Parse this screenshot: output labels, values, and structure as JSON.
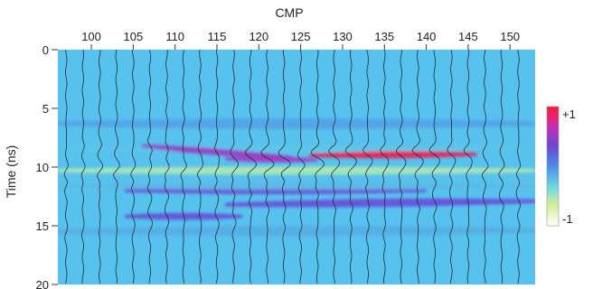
{
  "chart_data": {
    "type": "heatmap",
    "title": "",
    "xlabel": "CMP",
    "ylabel": "Time (ns)",
    "x_axis_position": "top",
    "x_ticks": [
      100,
      105,
      110,
      115,
      120,
      125,
      130,
      135,
      140,
      145,
      150
    ],
    "y_ticks": [
      0,
      5,
      10,
      15,
      20
    ],
    "xlim": [
      96,
      153
    ],
    "ylim": [
      0,
      20
    ],
    "y_inverted": true,
    "grid": false,
    "colorbar": {
      "placement": "right",
      "max_label": "+1",
      "min_label": "-1",
      "range": [
        -1,
        1
      ],
      "colors": [
        "#ffffff",
        "#d6ee98",
        "#66d9e6",
        "#4a8ce8",
        "#6a48d8",
        "#c82cb4",
        "#ff1a2e"
      ]
    },
    "background_color": "#56c2ee",
    "trace_color": "#2b2b2b",
    "wiggle_traces": {
      "cmp_start": 97,
      "cmp_end": 152,
      "cmp_step": 2
    },
    "reflection_bands": [
      {
        "cmp_from": 96,
        "cmp_to": 153,
        "t_start": 8.5,
        "t_end": 8.3,
        "amplitude": -0.25,
        "thickness": 0.6
      },
      {
        "cmp_from": 106,
        "cmp_to": 124,
        "t_start": 8.2,
        "t_end": 9.2,
        "amplitude": 0.5,
        "thickness": 0.55
      },
      {
        "cmp_from": 116,
        "cmp_to": 127,
        "t_start": 9.3,
        "t_end": 9.4,
        "amplitude": 0.55,
        "thickness": 0.5
      },
      {
        "cmp_from": 126,
        "cmp_to": 146,
        "t_start": 9.0,
        "t_end": 8.9,
        "amplitude": 0.9,
        "thickness": 0.6
      },
      {
        "cmp_from": 96,
        "cmp_to": 153,
        "t_start": 10.3,
        "t_end": 10.3,
        "amplitude": -0.55,
        "thickness": 0.7
      },
      {
        "cmp_from": 104,
        "cmp_to": 140,
        "t_start": 12.0,
        "t_end": 12.0,
        "amplitude": 0.35,
        "thickness": 0.6
      },
      {
        "cmp_from": 116,
        "cmp_to": 153,
        "t_start": 13.2,
        "t_end": 12.9,
        "amplitude": 0.3,
        "thickness": 0.7
      },
      {
        "cmp_from": 104,
        "cmp_to": 118,
        "t_start": 14.2,
        "t_end": 14.2,
        "amplitude": 0.3,
        "thickness": 0.6
      },
      {
        "cmp_from": 96,
        "cmp_to": 153,
        "t_start": 11.6,
        "t_end": 11.6,
        "amplitude": -0.2,
        "thickness": 0.7
      },
      {
        "cmp_from": 96,
        "cmp_to": 153,
        "t_start": 15.5,
        "t_end": 15.4,
        "amplitude": -0.15,
        "thickness": 0.9
      },
      {
        "cmp_from": 96,
        "cmp_to": 153,
        "t_start": 6.3,
        "t_end": 6.3,
        "amplitude": -0.1,
        "thickness": 0.9
      }
    ]
  }
}
